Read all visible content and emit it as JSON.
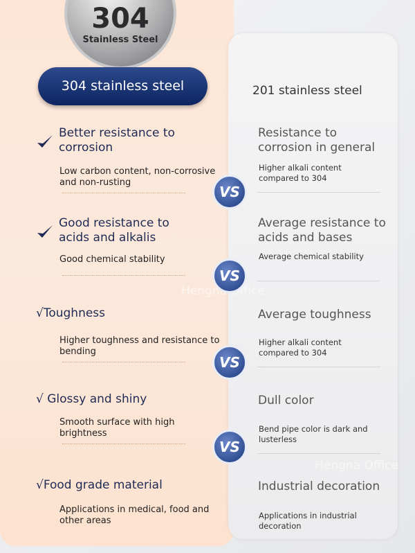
{
  "badge": {
    "number": "304",
    "label": "Stainless Steel"
  },
  "left_header": "304 stainless steel",
  "right_header": "201 stainless steel",
  "watermark": "Hengna Office",
  "rows": [
    {
      "left_title": "Better resistance to corrosion",
      "left_desc": "Low carbon content, non-corrosive and non-rusting",
      "right_title": "Resistance to corrosion in general",
      "right_desc": "Higher alkali content compared to 304",
      "vs": "VS"
    },
    {
      "left_title": "Good resistance to acids and alkalis",
      "left_desc": "Good chemical stability",
      "right_title": "Average resistance to acids and bases",
      "right_desc": "Average chemical stability",
      "vs": "VS"
    },
    {
      "left_title": "√Toughness",
      "left_desc": "Higher toughness and resistance to bending",
      "right_title": "Average toughness",
      "right_desc": "Higher alkali content compared to 304",
      "vs": "VS"
    },
    {
      "left_title": "√ Glossy and shiny",
      "left_desc": "Smooth surface with high brightness",
      "right_title": "Dull color",
      "right_desc": "Bend pipe color is dark and lusterless",
      "vs": "VS"
    },
    {
      "left_title": "√Food grade material",
      "left_desc": "Applications in medical, food and other areas",
      "right_title": "Industrial decoration",
      "right_desc": "Applications in industrial decoration"
    }
  ]
}
